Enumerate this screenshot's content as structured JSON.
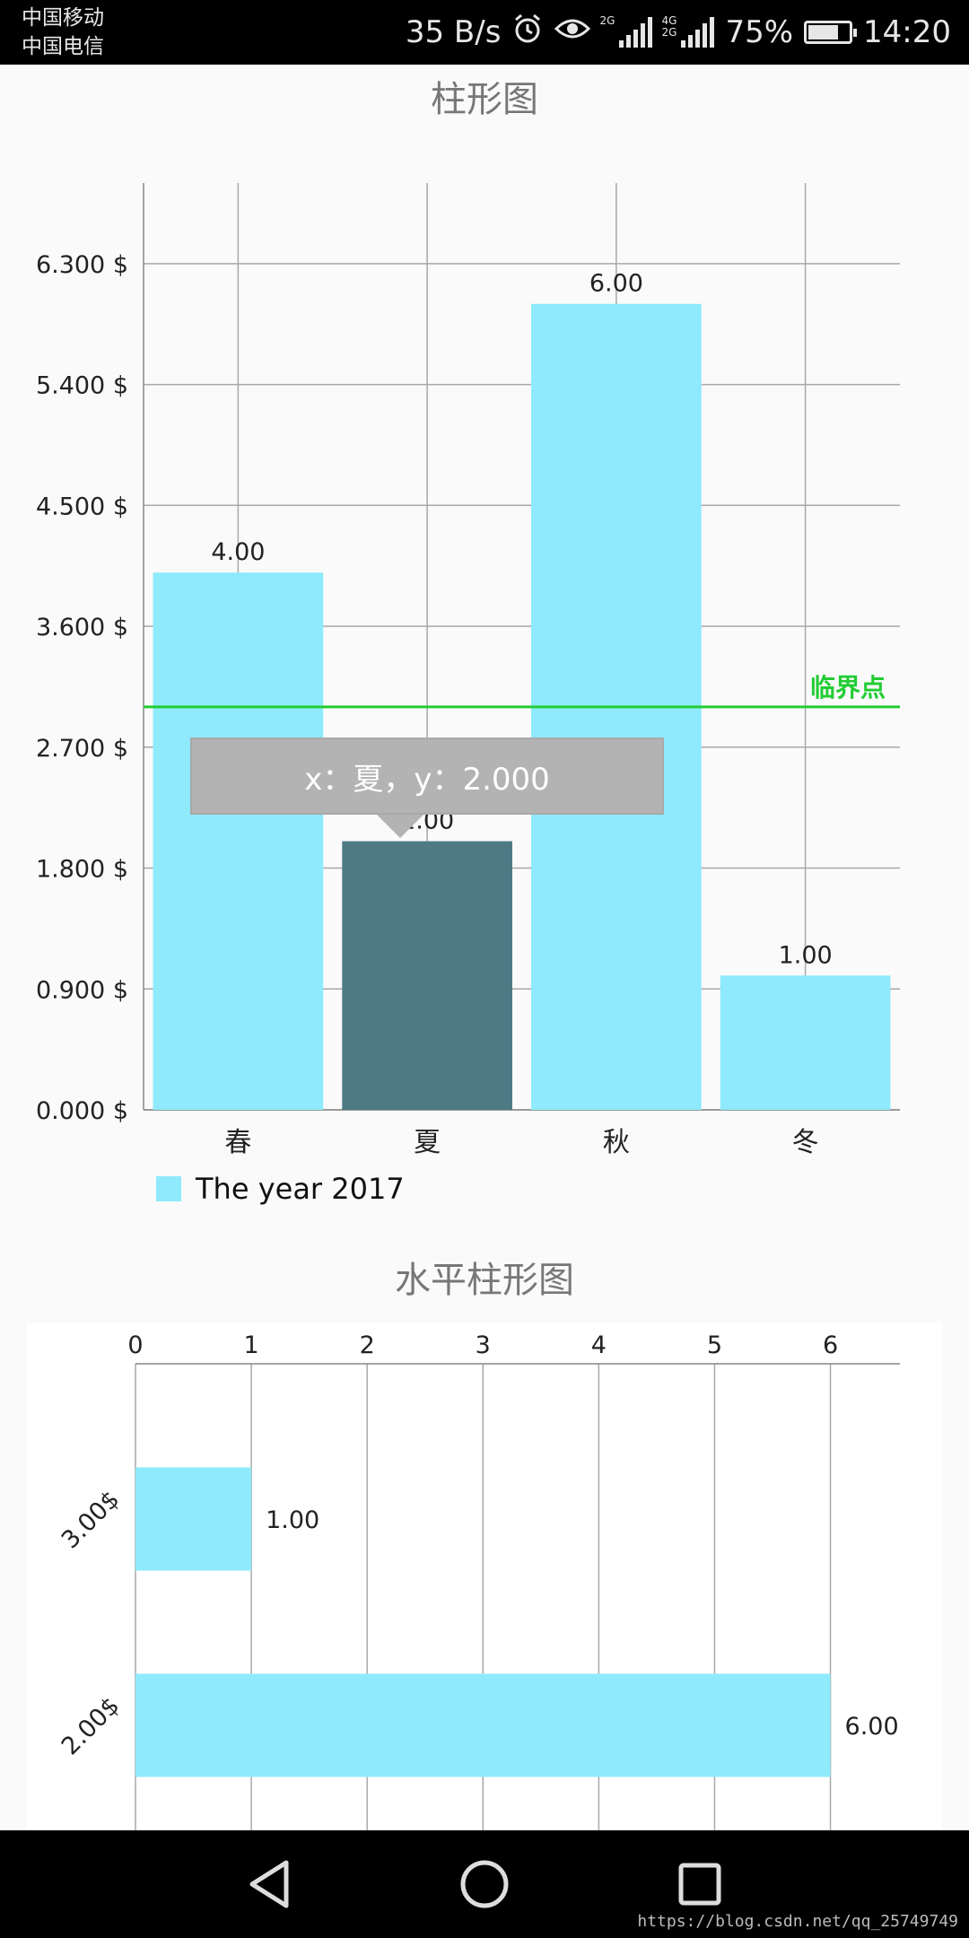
{
  "status_bar": {
    "carrier_1": "中国移动",
    "carrier_2": "中国电信",
    "net_speed": "35 B/s",
    "signal_1_tag": "2G",
    "signal_2_tag": "4G 2G",
    "battery": "75%",
    "battery_level": 0.75,
    "time": "14:20",
    "icons": [
      "alarm-icon",
      "eye-icon",
      "signal-icon",
      "battery-icon"
    ]
  },
  "vertical_chart": {
    "title": "柱形图",
    "tooltip": "x：夏，y：2.000",
    "limit_line_label": "临界点",
    "legend_label": "The year 2017"
  },
  "horizontal_chart": {
    "title": "水平柱形图"
  },
  "nav_bar": {
    "icons": [
      "back-icon",
      "home-icon",
      "recent-apps-icon"
    ]
  },
  "watermark": "https://blog.csdn.net/qq_25749749",
  "colors": {
    "bar": "#8eeafc",
    "highlight_bar": "#4d7a85",
    "limit_line": "#22cc33",
    "grid": "#a8a8a8",
    "tooltip_bg": "#b3b3b3"
  },
  "chart_data": [
    {
      "type": "bar",
      "title": "柱形图",
      "categories": [
        "春",
        "夏",
        "秋",
        "冬"
      ],
      "series": [
        {
          "name": "The year 2017",
          "values": [
            4,
            2,
            6,
            1
          ]
        }
      ],
      "value_labels": [
        "4.00",
        "2.00",
        "6.00",
        "1.00"
      ],
      "y_ticks": [
        0,
        0.9,
        1.8,
        2.7,
        3.6,
        4.5,
        5.4,
        6.3
      ],
      "y_tick_labels": [
        "0.000 $",
        "0.900 $",
        "1.800 $",
        "2.700 $",
        "3.600 $",
        "4.500 $",
        "5.400 $",
        "6.300 $"
      ],
      "ylim": [
        0,
        6.9
      ],
      "limit_line": {
        "value": 3,
        "label": "临界点"
      },
      "highlighted_category": "夏",
      "grid": true,
      "legend": "bottom-left"
    },
    {
      "type": "bar",
      "orientation": "horizontal",
      "title": "水平柱形图",
      "categories": [
        "3.00$",
        "2.00$"
      ],
      "values": [
        1,
        6
      ],
      "value_labels": [
        "1.00",
        "6.00"
      ],
      "x_ticks": [
        0,
        1,
        2,
        3,
        4,
        5,
        6
      ],
      "x_tick_labels": [
        "0",
        "1",
        "2",
        "3",
        "4",
        "5",
        "6"
      ],
      "xlim": [
        0,
        6.6
      ],
      "grid": true
    }
  ]
}
